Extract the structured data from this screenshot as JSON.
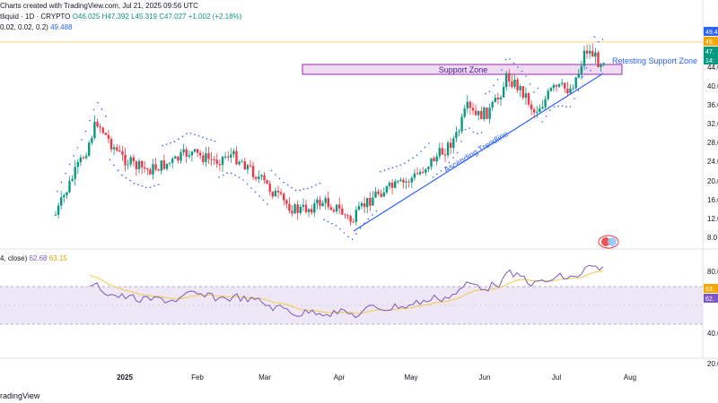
{
  "header": {
    "line1": "Charts created with TradingView.com, Jul 21, 2025 09:56 UTC",
    "symbol": "tliquid · 1D · CRYPTO",
    "ohlc_o": "O46.025",
    "ohlc_h": "H47.392",
    "ohlc_l": "L45.319",
    "ohlc_c": "C47.027",
    "change": "+1.002 (+2.18%)",
    "sar_params": "0.02, 0.02, 0.2)",
    "sar_value": "49.488"
  },
  "rsi_header": {
    "params": "4, close)",
    "rsi_value": "62.68",
    "ma_value": "63.15"
  },
  "price_axis": {
    "ticks": [
      "44.0",
      "40.0",
      "36.0",
      "32.0",
      "28.0",
      "24.0",
      "20.0",
      "16.0",
      "12.0",
      "8.0"
    ],
    "badges": [
      {
        "text": "49.4",
        "color": "#2962ff"
      },
      {
        "text": "49.",
        "color": "#f7a600"
      },
      {
        "text": "47.",
        "color": "#089981"
      },
      {
        "text": "14:",
        "color": "#089981"
      }
    ]
  },
  "rsi_axis": {
    "ticks": [
      "80.0",
      "40.0",
      "20.0"
    ],
    "badges": [
      {
        "text": "63.",
        "color": "#f7a600"
      },
      {
        "text": "62.",
        "color": "#7e57c2"
      }
    ]
  },
  "time_axis": {
    "labels": [
      "2025",
      "Feb",
      "Mar",
      "Apr",
      "May",
      "Jun",
      "Jul",
      "Aug"
    ]
  },
  "annotations": {
    "support_zone": "Support Zone",
    "retesting": "Retesting Support Zone",
    "trendline": "Ascending Trendline"
  },
  "footer": {
    "brand": "radingView"
  },
  "colors": {
    "up": "#089981",
    "down": "#f23645",
    "sar": "#2962ff",
    "zone_fill": "#e1bee7",
    "zone_border": "#9c27b0",
    "trend": "#2962ff",
    "rsi": "#7e57c2",
    "rsi_ma": "#f7c948",
    "rsi_band": "#ede7f6"
  }
}
